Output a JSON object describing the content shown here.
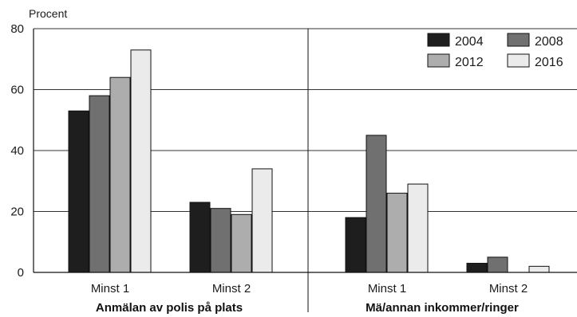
{
  "chart_data": {
    "type": "bar",
    "ylabel": "Procent",
    "ylim": [
      0,
      80
    ],
    "yticks": [
      "0",
      "20",
      "40",
      "60",
      "80"
    ],
    "grid": true,
    "legend_position": "top-right",
    "groups": [
      {
        "label": "Anmälan av polis på plats",
        "categories": [
          "Minst 1",
          "Minst 2"
        ]
      },
      {
        "label": "Mä/annan inkommer/ringer",
        "categories": [
          "Minst 1",
          "Minst 2"
        ]
      }
    ],
    "series": [
      {
        "name": "2004",
        "color": "#1e1e1e",
        "values": [
          53,
          23,
          18,
          3
        ]
      },
      {
        "name": "2008",
        "color": "#707070",
        "values": [
          58,
          21,
          45,
          5
        ]
      },
      {
        "name": "2012",
        "color": "#adadad",
        "values": [
          64,
          19,
          26,
          0
        ]
      },
      {
        "name": "2016",
        "color": "#ebebeb",
        "values": [
          73,
          34,
          29,
          2
        ]
      }
    ]
  }
}
